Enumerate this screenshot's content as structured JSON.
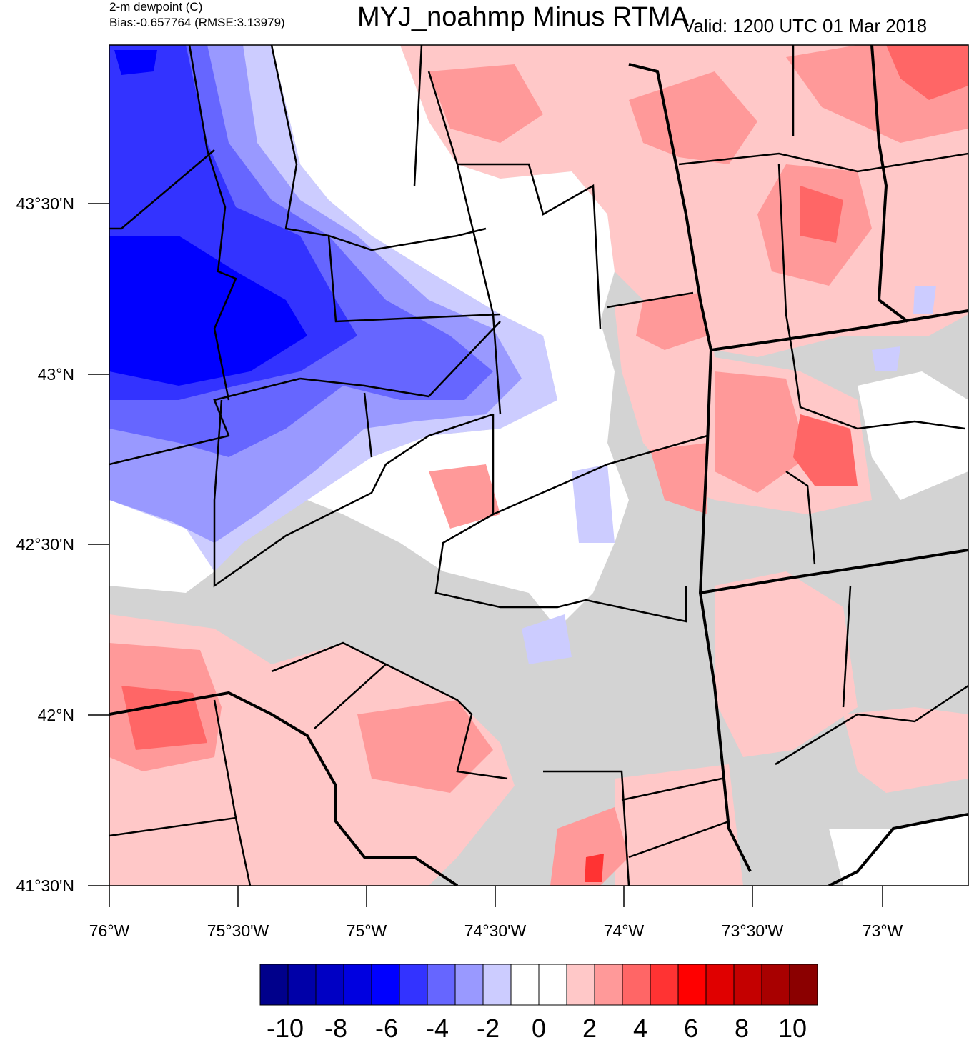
{
  "header": {
    "variable": "2-m dewpoint (C)",
    "bias": "Bias:-0.657764 (RMSE:3.13979)",
    "title": "MYJ_noahmp Minus RTMA",
    "valid": "Valid: 1200 UTC 01 Mar 2018"
  },
  "axes": {
    "lat_labels": [
      "43°30'N",
      "43°N",
      "42°30'N",
      "42°N",
      "41°30'N"
    ],
    "lon_labels": [
      "76°W",
      "75°30'W",
      "75°W",
      "74°30'W",
      "74°W",
      "73°30'W",
      "73°W"
    ]
  },
  "colorbar": {
    "colors": [
      "#00008b",
      "#0000a8",
      "#0000c4",
      "#0000e0",
      "#0000ff",
      "#3333ff",
      "#6666ff",
      "#9999ff",
      "#ccccff",
      "#ffffff",
      "#ffffff",
      "#ffc8c8",
      "#ff9999",
      "#ff6666",
      "#ff3333",
      "#ff0000",
      "#e00000",
      "#c40000",
      "#a80000",
      "#8b0000"
    ],
    "labels": [
      "-10",
      "-8",
      "-6",
      "-4",
      "-2",
      "0",
      "2",
      "4",
      "6",
      "8",
      "10"
    ]
  }
}
